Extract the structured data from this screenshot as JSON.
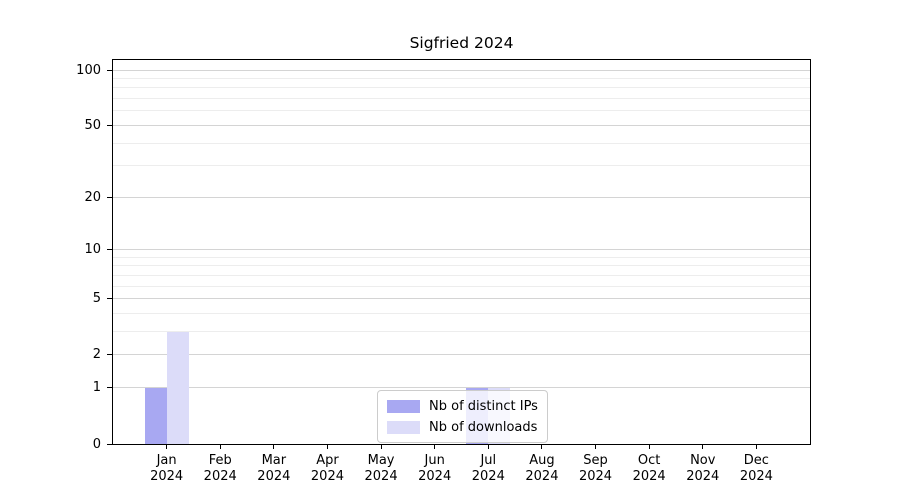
{
  "title": "Sigfried 2024",
  "chart_data": {
    "type": "bar",
    "title": "Sigfried 2024",
    "categories": [
      {
        "month": "Jan",
        "year": "2024"
      },
      {
        "month": "Feb",
        "year": "2024"
      },
      {
        "month": "Mar",
        "year": "2024"
      },
      {
        "month": "Apr",
        "year": "2024"
      },
      {
        "month": "May",
        "year": "2024"
      },
      {
        "month": "Jun",
        "year": "2024"
      },
      {
        "month": "Jul",
        "year": "2024"
      },
      {
        "month": "Aug",
        "year": "2024"
      },
      {
        "month": "Sep",
        "year": "2024"
      },
      {
        "month": "Oct",
        "year": "2024"
      },
      {
        "month": "Nov",
        "year": "2024"
      },
      {
        "month": "Dec",
        "year": "2024"
      }
    ],
    "series": [
      {
        "name": "Nb of distinct IPs",
        "color": "#a8a8f2",
        "values": [
          1,
          0,
          0,
          0,
          0,
          0,
          1,
          0,
          0,
          0,
          0,
          0
        ]
      },
      {
        "name": "Nb of downloads",
        "color": "#dcdcf9",
        "values": [
          3,
          0,
          0,
          0,
          0,
          0,
          1,
          0,
          0,
          0,
          0,
          0
        ]
      }
    ],
    "xlabel": "",
    "ylabel": "",
    "yscale": "log1p",
    "ylim": [
      0,
      113.3
    ],
    "yticks": [
      0,
      1,
      2,
      5,
      10,
      20,
      50,
      100
    ],
    "minor_yticks": [
      3,
      4,
      6,
      7,
      8,
      9,
      30,
      40,
      60,
      70,
      80,
      90
    ],
    "grid": true,
    "legend_position": "lower center"
  },
  "colors": {
    "distinct_ips_bar": "#a8a8f2",
    "downloads_bar": "#dcdcf9",
    "grid_major": "#d4d4d4",
    "grid_minor": "#ededed",
    "axis": "#000000"
  }
}
